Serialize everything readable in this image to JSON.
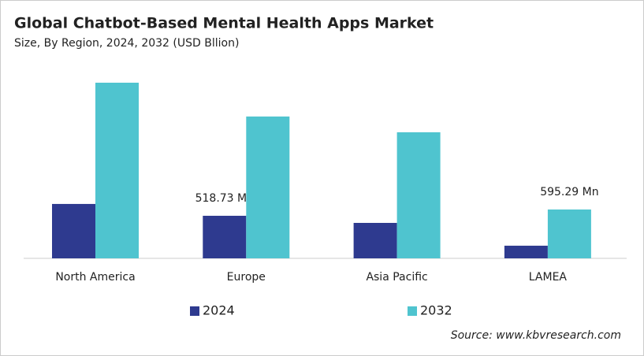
{
  "chart_data": {
    "type": "bar",
    "title": "Global Chatbot-Based  Mental Health Apps Market",
    "subtitle": "Size, By Region, 2024, 2032 (USD Bllion)",
    "categories": [
      "North America",
      "Europe",
      "Asia Pacific",
      "LAMEA"
    ],
    "series": [
      {
        "name": "2024",
        "color": "#2e3a8f",
        "values": [
          663,
          518.73,
          432,
          154
        ],
        "value_labels": [
          null,
          "518.73 Mn",
          null,
          null
        ]
      },
      {
        "name": "2032",
        "color": "#4fc4cf",
        "values": [
          2141,
          1729,
          1537,
          595.29
        ],
        "value_labels": [
          null,
          null,
          null,
          "595.29 Mn"
        ]
      }
    ],
    "source": "Source: www.kbvresearch.com"
  }
}
